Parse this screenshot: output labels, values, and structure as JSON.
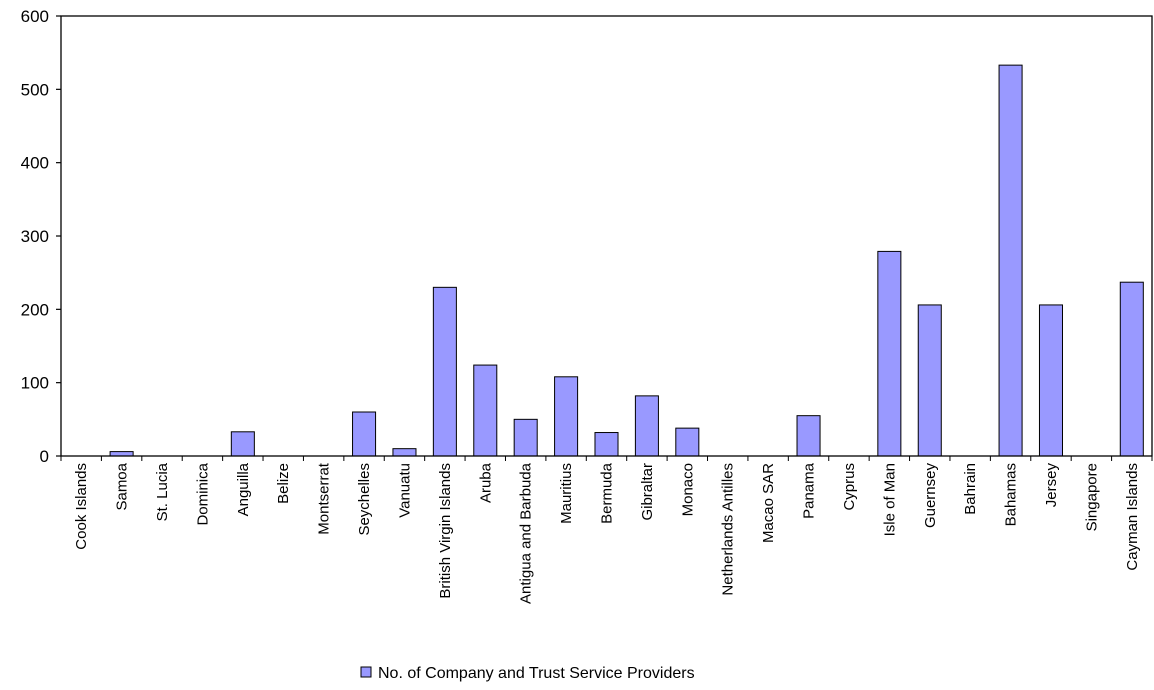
{
  "chart_data": {
    "type": "bar",
    "title": "",
    "xlabel": "",
    "ylabel": "",
    "ylim": [
      0,
      600
    ],
    "yticks": [
      0,
      100,
      200,
      300,
      400,
      500,
      600
    ],
    "grid": false,
    "legend_position": "bottom-center",
    "categories": [
      "Cook Islands",
      "Samoa",
      "St. Lucia",
      "Dominica",
      "Anguilla",
      "Belize",
      "Montserrat",
      "Seychelles",
      "Vanuatu",
      "British Virgin Islands",
      "Aruba",
      "Antigua and Barbuda",
      "Mauritius",
      "Bermuda",
      "Gibraltar",
      "Monaco",
      "Netherlands Antilles",
      "Macao SAR",
      "Panama",
      "Cyprus",
      "Isle of Man",
      "Guernsey",
      "Bahrain",
      "Bahamas",
      "Jersey",
      "Singapore",
      "Cayman Islands"
    ],
    "series": [
      {
        "name": "No. of Company and Trust Service Providers",
        "color": "#9999ff",
        "values": [
          0,
          6,
          0,
          0,
          33,
          0,
          0,
          60,
          10,
          230,
          124,
          50,
          108,
          32,
          82,
          38,
          0,
          0,
          55,
          0,
          279,
          206,
          0,
          533,
          206,
          0,
          237
        ]
      }
    ]
  }
}
